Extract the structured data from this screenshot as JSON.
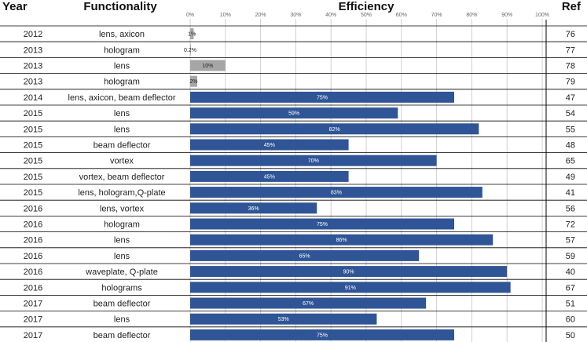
{
  "headers": {
    "year": "Year",
    "functionality": "Functionality",
    "efficiency": "Efficiency",
    "ref": "Ref"
  },
  "colors": {
    "bar": "#2f5597",
    "bar_low": "#a6a6a6",
    "grid": "#d0d0d0",
    "row_line": "#000000",
    "label_on_bar": "#ffffff",
    "label_off_bar": "#222222"
  },
  "chart_data": {
    "type": "bar",
    "orientation": "horizontal",
    "title": "Efficiency",
    "xlim": [
      0,
      100
    ],
    "x_ticks": [
      "0%",
      "10%",
      "20%",
      "30%",
      "40%",
      "50%",
      "60%",
      "70%",
      "80%",
      "90%",
      "100%"
    ],
    "grid": true,
    "rows": [
      {
        "year": "2012",
        "functionality": "lens, axicon",
        "efficiency": 1,
        "label": "1%",
        "ref": "76"
      },
      {
        "year": "2013",
        "functionality": "hologram",
        "efficiency": 0.2,
        "label": "0.2%",
        "ref": "77"
      },
      {
        "year": "2013",
        "functionality": "lens",
        "efficiency": 10,
        "label": "10%",
        "ref": "78"
      },
      {
        "year": "2013",
        "functionality": "hologram",
        "efficiency": 2,
        "label": "2%",
        "ref": "79"
      },
      {
        "year": "2014",
        "functionality": "lens, axicon, beam deflector",
        "efficiency": 75,
        "label": "75%",
        "ref": "47"
      },
      {
        "year": "2015",
        "functionality": "lens",
        "efficiency": 59,
        "label": "59%",
        "ref": "54"
      },
      {
        "year": "2015",
        "functionality": "lens",
        "efficiency": 82,
        "label": "82%",
        "ref": "55"
      },
      {
        "year": "2015",
        "functionality": "beam deflector",
        "efficiency": 45,
        "label": "45%",
        "ref": "48"
      },
      {
        "year": "2015",
        "functionality": "vortex",
        "efficiency": 70,
        "label": "70%",
        "ref": "65"
      },
      {
        "year": "2015",
        "functionality": "vortex, beam deflector",
        "efficiency": 45,
        "label": "45%",
        "ref": "49"
      },
      {
        "year": "2015",
        "functionality": "lens, hologram,Q-plate",
        "efficiency": 83,
        "label": "83%",
        "ref": "41"
      },
      {
        "year": "2016",
        "functionality": "lens, vortex",
        "efficiency": 36,
        "label": "36%",
        "ref": "56"
      },
      {
        "year": "2016",
        "functionality": "hologram",
        "efficiency": 75,
        "label": "75%",
        "ref": "72"
      },
      {
        "year": "2016",
        "functionality": "lens",
        "efficiency": 86,
        "label": "86%",
        "ref": "57"
      },
      {
        "year": "2016",
        "functionality": "lens",
        "efficiency": 65,
        "label": "65%",
        "ref": "59"
      },
      {
        "year": "2016",
        "functionality": "waveplate, Q-plate",
        "efficiency": 90,
        "label": "90%",
        "ref": "40"
      },
      {
        "year": "2016",
        "functionality": "holograms",
        "efficiency": 91,
        "label": "91%",
        "ref": "67"
      },
      {
        "year": "2017",
        "functionality": "beam deflector",
        "efficiency": 67,
        "label": "67%",
        "ref": "51"
      },
      {
        "year": "2017",
        "functionality": "lens",
        "efficiency": 53,
        "label": "53%",
        "ref": "60"
      },
      {
        "year": "2017",
        "functionality": "beam deflector",
        "efficiency": 75,
        "label": "75%",
        "ref": "50"
      }
    ]
  }
}
